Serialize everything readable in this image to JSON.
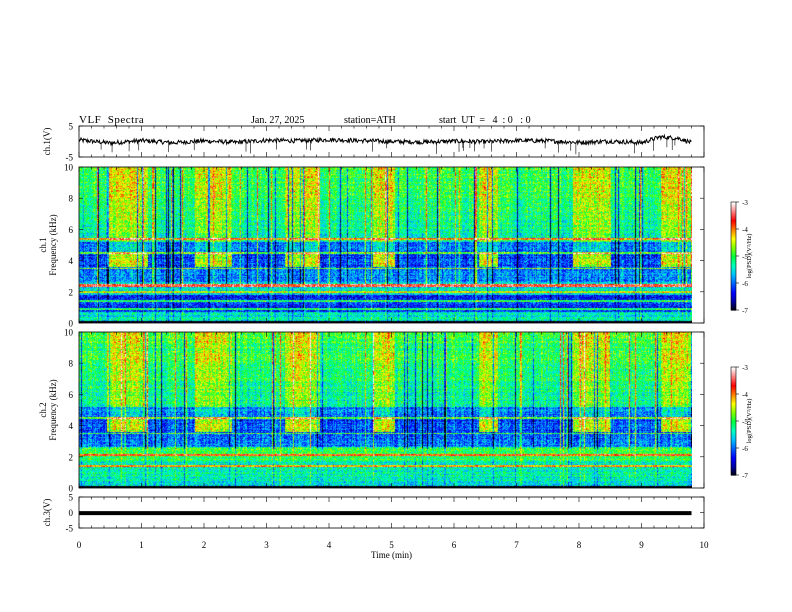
{
  "header": {
    "title": "VLF  Spectra",
    "date": "Jan. 27, 2025",
    "station": "station=ATH",
    "start": "start  UT  =   4  : 0   : 0"
  },
  "chart_data": [
    {
      "type": "line",
      "panel": "ch1-voltage",
      "ylabel": "ch.1(V)",
      "ylim": [
        -5,
        5
      ],
      "yticks": [
        "5",
        "-5"
      ],
      "xlim": [
        0,
        9.8
      ],
      "series": [
        {
          "x": [
            0,
            0.5,
            1.0,
            1.5,
            2.0,
            2.5,
            3.0,
            3.5,
            4.0,
            4.5,
            5.0,
            5.5,
            6.0,
            6.5,
            7.0,
            7.5,
            8.0,
            8.5,
            9.0,
            9.3,
            9.6,
            9.8
          ],
          "values": [
            0.5,
            -0.5,
            0.3,
            -0.4,
            0.2,
            -0.3,
            0.4,
            0.2,
            0.6,
            0.3,
            0.0,
            -0.2,
            0.1,
            -0.1,
            0.3,
            0.2,
            -0.3,
            0.1,
            -0.4,
            1.5,
            1.0,
            -0.4
          ]
        }
      ]
    },
    {
      "type": "heatmap",
      "panel": "ch1-spectrogram",
      "ylabel": "ch.1\nFrequency  (kHz)",
      "ylim": [
        0,
        10
      ],
      "yticks": [
        "0",
        "2",
        "4",
        "6",
        "8",
        "10"
      ],
      "xlim": [
        0,
        9.8
      ],
      "colorbar": {
        "label": "log(PSD)(V²/Hz)",
        "range": [
          -7,
          -3
        ],
        "ticks": [
          "-3",
          "-4",
          "-5",
          "-6",
          "-7"
        ]
      },
      "bursts_min": [
        [
          0.45,
          1.1
        ],
        [
          1.85,
          2.45
        ],
        [
          3.3,
          3.85
        ],
        [
          4.7,
          5.05
        ],
        [
          6.4,
          6.7
        ],
        [
          7.9,
          8.5
        ],
        [
          9.3,
          9.8
        ]
      ],
      "burst_band_khz": [
        3.6,
        4.4
      ],
      "lines_khz": [
        0.9,
        1.4,
        2.0,
        2.4,
        3.5,
        4.5,
        5.4
      ]
    },
    {
      "type": "heatmap",
      "panel": "ch2-spectrogram",
      "ylabel": "ch.2\nFrequency  (kHz)",
      "ylim": [
        0,
        10
      ],
      "yticks": [
        "0",
        "2",
        "4",
        "6",
        "8",
        "10"
      ],
      "xlim": [
        0,
        9.8
      ],
      "colorbar": {
        "label": "log(PSD)(V²/Hz)",
        "range": [
          -7,
          -3
        ],
        "ticks": [
          "-3",
          "-4",
          "-5",
          "-6",
          "-7"
        ]
      },
      "bursts_min": [
        [
          0.45,
          1.1
        ],
        [
          1.85,
          2.45
        ],
        [
          3.3,
          3.85
        ],
        [
          4.7,
          5.05
        ],
        [
          6.4,
          6.7
        ],
        [
          7.9,
          8.5
        ],
        [
          9.3,
          9.8
        ]
      ],
      "burst_band_khz": [
        3.6,
        4.2
      ],
      "lines_khz": [
        1.4,
        2.1,
        3.5,
        4.5
      ]
    },
    {
      "type": "line",
      "panel": "ch3-voltage",
      "ylabel": "ch.3(V)",
      "ylim": [
        -5,
        5
      ],
      "yticks": [
        "5",
        "0",
        "-5"
      ],
      "xlim": [
        0,
        9.8
      ],
      "series": [
        {
          "x": [
            0,
            9.8
          ],
          "values": [
            -0.2,
            -0.2
          ]
        }
      ]
    }
  ],
  "xaxis": {
    "label": "Time  (min)",
    "range": [
      0,
      10
    ],
    "ticks": [
      "0",
      "1",
      "2",
      "3",
      "4",
      "5",
      "6",
      "7",
      "8",
      "9",
      "10"
    ]
  },
  "colormap": [
    "#000000",
    "#0000a0",
    "#0000ff",
    "#0060ff",
    "#00c0ff",
    "#00ffc0",
    "#00ff40",
    "#80ff00",
    "#ffff00",
    "#ff8000",
    "#ff0000",
    "#ff8080",
    "#ffffff"
  ]
}
